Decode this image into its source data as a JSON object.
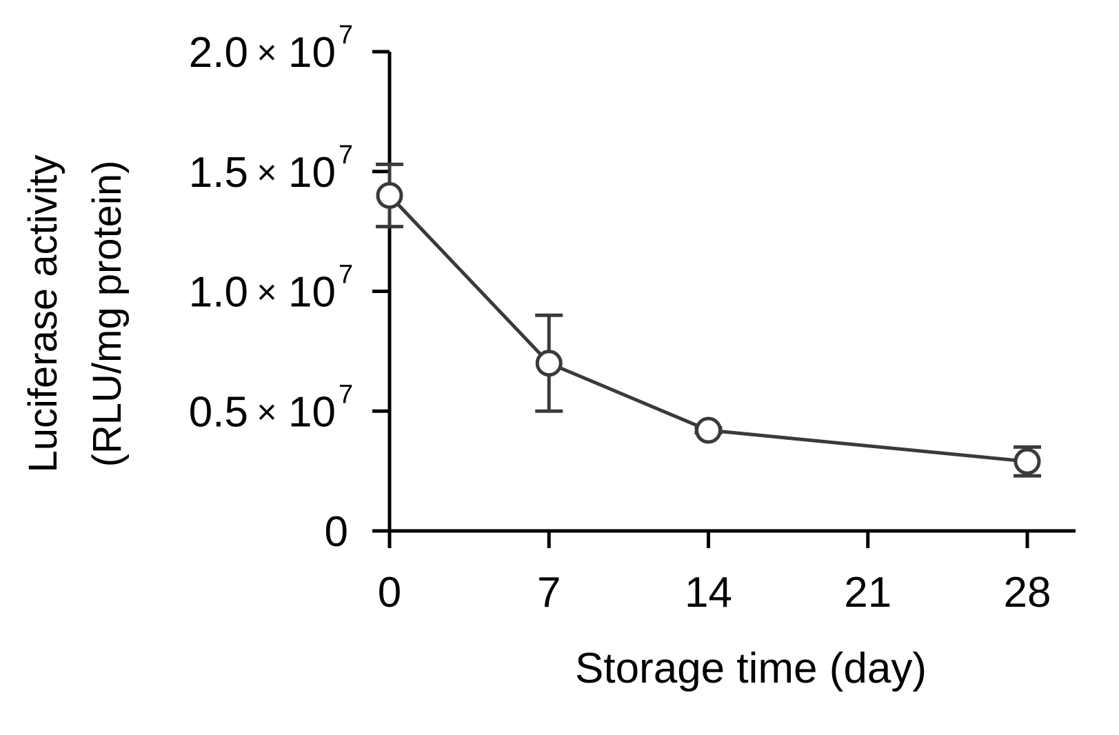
{
  "chart_data": {
    "type": "line",
    "xlabel": "Storage time (day)",
    "ylabel_lines": [
      "Luciferase activity",
      "(RLU/mg protein)"
    ],
    "xlim": [
      0,
      28
    ],
    "ylim": [
      0,
      20000000
    ],
    "x_ticks": [
      0,
      7,
      14,
      21,
      28
    ],
    "x_tick_labels": [
      "0",
      "7",
      "14",
      "21",
      "28"
    ],
    "y_ticks": [
      0,
      5000000,
      10000000,
      15000000,
      20000000
    ],
    "y_tick_labels": [
      {
        "mantissa": "0",
        "times": "",
        "base": "",
        "exp": ""
      },
      {
        "mantissa": "0.5",
        "times": "×",
        "base": "10",
        "exp": "7"
      },
      {
        "mantissa": "1.0",
        "times": "×",
        "base": "10",
        "exp": "7"
      },
      {
        "mantissa": "1.5",
        "times": "×",
        "base": "10",
        "exp": "7"
      },
      {
        "mantissa": "2.0",
        "times": "×",
        "base": "10",
        "exp": "7"
      }
    ],
    "series": [
      {
        "x": [
          0,
          7,
          14,
          28
        ],
        "y": [
          14000000,
          7000000,
          4200000,
          2900000
        ],
        "error": [
          1300000,
          2000000,
          100000,
          600000
        ]
      }
    ],
    "grid": false,
    "line_color": "#3a3a3a",
    "marker": "open-circle"
  }
}
